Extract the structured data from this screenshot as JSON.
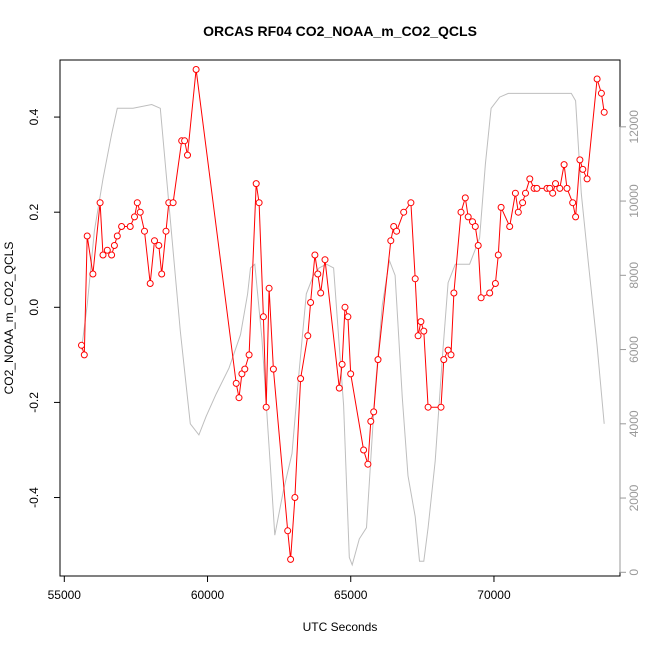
{
  "chart_data": {
    "type": "line",
    "title": "ORCAS RF04 CO2_NOAA_m_CO2_QCLS",
    "xlabel": "UTC Seconds",
    "ylabel": "CO2_NOAA_m_CO2_QCLS",
    "xlim": [
      54850,
      74400
    ],
    "ylim": [
      -0.565,
      0.52
    ],
    "y2lim": [
      -100,
      13800
    ],
    "x_ticks": [
      55000,
      60000,
      65000,
      70000
    ],
    "x_tick_labels": [
      "55000",
      "60000",
      "65000",
      "70000"
    ],
    "y_ticks": [
      -0.4,
      -0.2,
      0.0,
      0.2,
      0.4
    ],
    "y_tick_labels": [
      "-0.4",
      "-0.2",
      "0.0",
      "0.2",
      "0.4"
    ],
    "y2_ticks": [
      0,
      2000,
      4000,
      6000,
      8000,
      10000,
      12000
    ],
    "y2_tick_labels": [
      "0",
      "2000",
      "4000",
      "6000",
      "8000",
      "10000",
      "12000"
    ],
    "grid": false,
    "colors": {
      "difference": "#ff0000",
      "altitude": "#bebebe",
      "axis": "#000000",
      "right_axis": "#999999"
    },
    "series": [
      {
        "role": "difference",
        "style": "line+open-circles",
        "x": [
          55600,
          55700,
          55800,
          56000,
          56250,
          56350,
          56500,
          56650,
          56750,
          56850,
          57000,
          57300,
          57450,
          57550,
          57650,
          57800,
          58000,
          58150,
          58300,
          58400,
          58550,
          58650,
          58800,
          59100,
          59200,
          59300,
          59600,
          61000,
          61100,
          61200,
          61300,
          61450,
          61700,
          61800,
          61950,
          62050,
          62150,
          62300,
          62800,
          62900,
          63050,
          63250,
          63500,
          63600,
          63750,
          63850,
          63950,
          64100,
          64600,
          64700,
          64800,
          64900,
          65000,
          65450,
          65600,
          65700,
          65800,
          65950,
          66400,
          66500,
          66600,
          66850,
          67100,
          67250,
          67350,
          67450,
          67550,
          67700,
          68150,
          68250,
          68400,
          68500,
          68600,
          68850,
          69000,
          69100,
          69250,
          69350,
          69450,
          69550,
          69850,
          70050,
          70150,
          70250,
          70550,
          70750,
          70850,
          71000,
          71100,
          71250,
          71400,
          71500,
          71850,
          71950,
          72050,
          72150,
          72300,
          72450,
          72550,
          72750,
          72850,
          73000,
          73100,
          73250,
          73600,
          73750,
          73850
        ],
        "y": [
          -0.08,
          -0.1,
          0.15,
          0.07,
          0.22,
          0.11,
          0.12,
          0.11,
          0.13,
          0.15,
          0.17,
          0.17,
          0.19,
          0.22,
          0.2,
          0.16,
          0.05,
          0.14,
          0.13,
          0.07,
          0.16,
          0.22,
          0.22,
          0.35,
          0.35,
          0.32,
          0.5,
          -0.16,
          -0.19,
          -0.14,
          -0.13,
          -0.1,
          0.26,
          0.22,
          -0.02,
          -0.21,
          0.04,
          -0.13,
          -0.47,
          -0.53,
          -0.4,
          -0.15,
          -0.06,
          0.01,
          0.11,
          0.07,
          0.03,
          0.1,
          -0.17,
          -0.12,
          0.0,
          -0.02,
          -0.14,
          -0.3,
          -0.33,
          -0.24,
          -0.22,
          -0.11,
          0.14,
          0.17,
          0.16,
          0.2,
          0.22,
          0.06,
          -0.06,
          -0.03,
          -0.05,
          -0.21,
          -0.21,
          -0.11,
          -0.09,
          -0.1,
          0.03,
          0.2,
          0.23,
          0.19,
          0.18,
          0.17,
          0.13,
          0.02,
          0.03,
          0.05,
          0.11,
          0.21,
          0.17,
          0.24,
          0.2,
          0.22,
          0.24,
          0.27,
          0.25,
          0.25,
          0.25,
          0.25,
          0.24,
          0.26,
          0.25,
          0.3,
          0.25,
          0.22,
          0.19,
          0.31,
          0.29,
          0.27,
          0.48,
          0.45,
          0.41
        ]
      },
      {
        "role": "altitude",
        "axis": "right",
        "style": "line",
        "x": [
          55600,
          55800,
          56050,
          56350,
          56650,
          56850,
          57400,
          58050,
          58350,
          58700,
          59050,
          59400,
          59700,
          59950,
          60300,
          60750,
          61150,
          61400,
          61500,
          61650,
          61900,
          62200,
          62350,
          62650,
          62950,
          63150,
          63450,
          63700,
          63900,
          64150,
          64400,
          64750,
          64950,
          65050,
          65300,
          65550,
          65850,
          66100,
          66350,
          66550,
          66800,
          67000,
          67250,
          67400,
          67550,
          67700,
          67950,
          68200,
          68400,
          68650,
          69150,
          69500,
          69700,
          69900,
          70200,
          70500,
          71000,
          71500,
          72000,
          72700,
          72850,
          73050,
          73300,
          73600,
          73850
        ],
        "y": [
          6000,
          7200,
          9200,
          10600,
          11800,
          12500,
          12500,
          12600,
          12500,
          9500,
          6500,
          4000,
          3700,
          4200,
          4800,
          5500,
          6400,
          7500,
          8200,
          8300,
          6300,
          2800,
          1000,
          2200,
          3200,
          5000,
          7500,
          8000,
          8200,
          8300,
          8200,
          4500,
          400,
          200,
          900,
          1200,
          4900,
          7200,
          8400,
          8000,
          4700,
          2600,
          1500,
          300,
          300,
          1200,
          3000,
          5800,
          7800,
          8300,
          8300,
          9000,
          11000,
          12500,
          12800,
          12900,
          12900,
          12900,
          12900,
          12900,
          12700,
          10200,
          8300,
          6100,
          4000
        ]
      }
    ]
  }
}
